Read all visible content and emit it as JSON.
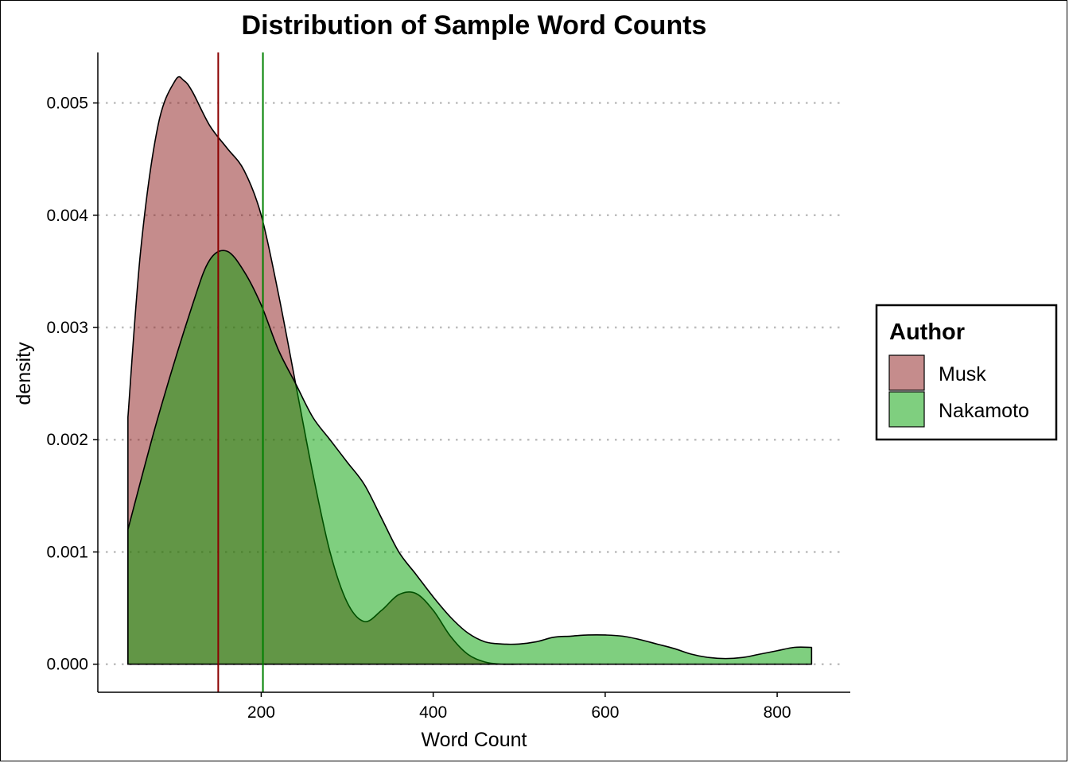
{
  "chart_data": {
    "type": "area",
    "title": "Distribution of Sample Word Counts",
    "xlabel": "Word Count",
    "ylabel": "density",
    "xlim": [
      10,
      885
    ],
    "ylim": [
      -0.00025,
      0.00545
    ],
    "x_ticks": [
      200,
      400,
      600,
      800
    ],
    "x_tick_labels": [
      "200",
      "400",
      "600",
      "800"
    ],
    "y_ticks": [
      0.0,
      0.001,
      0.002,
      0.003,
      0.004,
      0.005
    ],
    "y_tick_labels": [
      "0.000",
      "0.001",
      "0.002",
      "0.003",
      "0.004",
      "0.005"
    ],
    "grid": "horizontal dotted",
    "legend": {
      "title": "Author",
      "position": "right",
      "entries": [
        "Musk",
        "Nakamoto"
      ]
    },
    "series": [
      {
        "name": "Musk",
        "fill_color": "#8b1a1a",
        "mean_line_color": "#8b0000",
        "mean_value": 150,
        "x": [
          45,
          60,
          80,
          100,
          110,
          120,
          140,
          160,
          180,
          200,
          220,
          240,
          260,
          280,
          300,
          320,
          340,
          360,
          380,
          400,
          420,
          440,
          460,
          480,
          500,
          520
        ],
        "values": [
          0.0022,
          0.0037,
          0.0048,
          0.0052,
          0.0052,
          0.0051,
          0.0048,
          0.0046,
          0.0044,
          0.004,
          0.0033,
          0.0025,
          0.0017,
          0.001,
          0.00055,
          0.00038,
          0.00048,
          0.00062,
          0.00063,
          0.00048,
          0.00025,
          9e-05,
          2e-05,
          0.0,
          0.0,
          0.0
        ]
      },
      {
        "name": "Nakamoto",
        "fill_color": "#00a000",
        "mean_line_color": "#008000",
        "mean_value": 202,
        "x": [
          45,
          80,
          120,
          140,
          160,
          180,
          200,
          220,
          240,
          260,
          280,
          300,
          320,
          340,
          360,
          380,
          400,
          420,
          440,
          460,
          480,
          500,
          520,
          540,
          560,
          580,
          600,
          620,
          640,
          660,
          680,
          700,
          720,
          740,
          760,
          780,
          800,
          820,
          840
        ],
        "values": [
          0.0012,
          0.0022,
          0.0032,
          0.0036,
          0.00368,
          0.0035,
          0.0032,
          0.0028,
          0.0025,
          0.0022,
          0.002,
          0.0018,
          0.0016,
          0.0013,
          0.001,
          0.0008,
          0.0006,
          0.00042,
          0.00028,
          0.0002,
          0.00018,
          0.00018,
          0.0002,
          0.00024,
          0.00025,
          0.00026,
          0.00026,
          0.00025,
          0.00022,
          0.00018,
          0.00014,
          9e-05,
          6e-05,
          5e-05,
          6e-05,
          9e-05,
          0.00012,
          0.00015,
          0.00015
        ]
      }
    ]
  }
}
